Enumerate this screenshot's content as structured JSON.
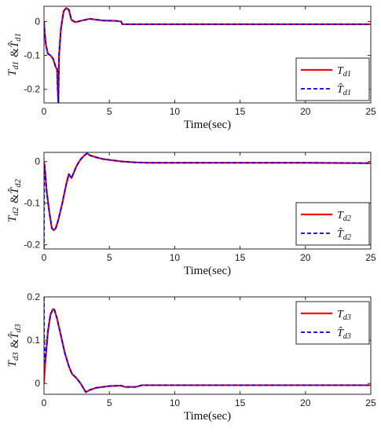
{
  "chart_data": [
    {
      "type": "line",
      "ylabel": "T_d1 & T̂_d1",
      "xlabel": "Time(sec)",
      "xlim": [
        0,
        25
      ],
      "ylim": [
        -0.24,
        0.045
      ],
      "xticks": [
        0,
        5,
        10,
        15,
        20,
        25
      ],
      "yticks": [
        -0.2,
        -0.1,
        0
      ],
      "legend": {
        "position": "bottom-right",
        "entries": [
          "T_d1",
          "T̂_d1"
        ]
      },
      "series": [
        {
          "name": "T_d1",
          "color": "#ff0000",
          "dash": "solid",
          "x": [
            0,
            0.05,
            0.15,
            0.3,
            0.5,
            0.7,
            0.9,
            1.0,
            1.05,
            1.1,
            1.15,
            1.3,
            1.5,
            1.7,
            1.9,
            2.1,
            2.4,
            2.8,
            3.5,
            4.5,
            5.5,
            5.9,
            6.0,
            7,
            10,
            15,
            20,
            25
          ],
          "y": [
            0,
            -0.03,
            -0.07,
            -0.095,
            -0.1,
            -0.11,
            -0.135,
            -0.14,
            -0.2,
            -0.24,
            -0.1,
            -0.02,
            0.03,
            0.04,
            0.035,
            0.005,
            -0.002,
            0.002,
            0.008,
            0.003,
            0.002,
            0,
            -0.008,
            -0.008,
            -0.008,
            -0.008,
            -0.008,
            -0.008
          ]
        },
        {
          "name": "T̂_d1",
          "color": "#0000ff",
          "dash": "dashed",
          "x": [
            0,
            0.05,
            0.15,
            0.3,
            0.5,
            0.7,
            0.9,
            1.0,
            1.05,
            1.1,
            1.15,
            1.3,
            1.5,
            1.7,
            1.9,
            2.1,
            2.4,
            2.8,
            3.5,
            4.5,
            5.5,
            5.9,
            6.0,
            7,
            10,
            15,
            20,
            25
          ],
          "y": [
            0,
            -0.03,
            -0.07,
            -0.095,
            -0.1,
            -0.11,
            -0.135,
            -0.14,
            -0.2,
            -0.24,
            -0.1,
            -0.02,
            0.03,
            0.04,
            0.035,
            0.005,
            -0.002,
            0.002,
            0.008,
            0.003,
            0.002,
            0,
            -0.008,
            -0.008,
            -0.008,
            -0.008,
            -0.008,
            -0.008
          ]
        }
      ]
    },
    {
      "type": "line",
      "ylabel": "T_d2 & T̂_d2",
      "xlabel": "Time(sec)",
      "xlim": [
        0,
        25
      ],
      "ylim": [
        -0.21,
        0.022
      ],
      "xticks": [
        0,
        5,
        10,
        15,
        20,
        25
      ],
      "yticks": [
        -0.2,
        -0.1,
        0
      ],
      "legend": {
        "position": "bottom-right",
        "entries": [
          "T_d2",
          "T̂_d2"
        ]
      },
      "series": [
        {
          "name": "T_d2",
          "color": "#ff0000",
          "dash": "solid",
          "x": [
            0,
            0.05,
            0.2,
            0.4,
            0.6,
            0.75,
            0.9,
            1.1,
            1.4,
            1.7,
            1.9,
            2.1,
            2.3,
            2.5,
            2.8,
            3.1,
            3.3,
            3.5,
            4,
            4.5,
            5,
            5.5,
            6,
            7,
            8,
            10,
            15,
            20,
            25
          ],
          "y": [
            0,
            -0.01,
            -0.07,
            -0.12,
            -0.16,
            -0.165,
            -0.16,
            -0.14,
            -0.1,
            -0.055,
            -0.03,
            -0.04,
            -0.025,
            -0.01,
            0.005,
            0.015,
            0.02,
            0.015,
            0.01,
            0.006,
            0.004,
            0.002,
            0,
            -0.002,
            -0.003,
            -0.003,
            -0.003,
            -0.003,
            -0.004
          ]
        },
        {
          "name": "T̂_d2",
          "color": "#0000ff",
          "dash": "dashed",
          "x": [
            0,
            0.02,
            0.05,
            0.2,
            0.4,
            0.6,
            0.75,
            0.9,
            1.1,
            1.4,
            1.7,
            1.9,
            2.1,
            2.3,
            2.5,
            2.8,
            3.1,
            3.3,
            3.5,
            4,
            4.5,
            5,
            5.5,
            6,
            7,
            8,
            10,
            15,
            20,
            25
          ],
          "y": [
            -0.21,
            -0.05,
            -0.01,
            -0.07,
            -0.12,
            -0.16,
            -0.165,
            -0.16,
            -0.14,
            -0.1,
            -0.055,
            -0.03,
            -0.04,
            -0.025,
            -0.01,
            0.005,
            0.015,
            0.02,
            0.015,
            0.01,
            0.006,
            0.004,
            0.002,
            0,
            -0.002,
            -0.003,
            -0.003,
            -0.003,
            -0.003,
            -0.004
          ]
        }
      ]
    },
    {
      "type": "line",
      "ylabel": "T_d3 & T̂_d3",
      "xlabel": "Time(sec)",
      "xlim": [
        0,
        25
      ],
      "ylim": [
        -0.025,
        0.2
      ],
      "xticks": [
        0,
        5,
        10,
        15,
        20,
        25
      ],
      "yticks": [
        0,
        0.1,
        0.2
      ],
      "legend": {
        "position": "top-right",
        "entries": [
          "T_d3",
          "T̂_d3"
        ]
      },
      "series": [
        {
          "name": "T_d3",
          "color": "#ff0000",
          "dash": "solid",
          "x": [
            0,
            0.1,
            0.3,
            0.5,
            0.7,
            0.8,
            1.0,
            1.3,
            1.6,
            1.9,
            2.1,
            2.2,
            2.4,
            2.6,
            2.8,
            3.0,
            3.2,
            3.5,
            4,
            5,
            5.9,
            6.2,
            7,
            7.5,
            10,
            15,
            20,
            25
          ],
          "y": [
            0,
            0.05,
            0.12,
            0.16,
            0.172,
            0.17,
            0.15,
            0.11,
            0.07,
            0.04,
            0.025,
            0.02,
            0.015,
            0.008,
            0,
            -0.01,
            -0.02,
            -0.015,
            -0.01,
            -0.006,
            -0.005,
            -0.008,
            -0.008,
            -0.004,
            -0.004,
            -0.004,
            -0.004,
            -0.004
          ]
        },
        {
          "name": "T̂_d3",
          "color": "#0000ff",
          "dash": "dashed",
          "x": [
            0,
            0.02,
            0.1,
            0.3,
            0.5,
            0.7,
            0.8,
            1.0,
            1.3,
            1.6,
            1.9,
            2.1,
            2.2,
            2.4,
            2.6,
            2.8,
            3.0,
            3.2,
            3.5,
            4,
            5,
            5.9,
            6.2,
            7,
            7.5,
            10,
            15,
            20,
            25
          ],
          "y": [
            0.2,
            0.1,
            0.05,
            0.12,
            0.16,
            0.172,
            0.17,
            0.15,
            0.11,
            0.07,
            0.04,
            0.025,
            0.02,
            0.015,
            0.008,
            0,
            -0.01,
            -0.02,
            -0.015,
            -0.01,
            -0.006,
            -0.005,
            -0.008,
            -0.008,
            -0.004,
            -0.004,
            -0.004,
            -0.004,
            -0.004
          ]
        }
      ]
    }
  ]
}
